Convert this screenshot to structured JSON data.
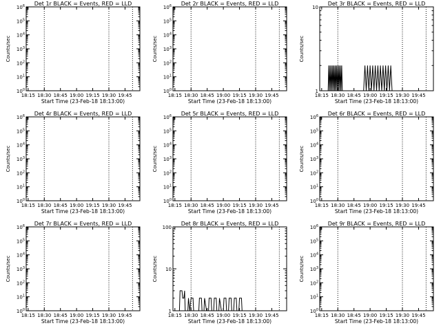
{
  "figure": {
    "background": "#ffffff",
    "axis_color": "#000000",
    "event_color": "#000000",
    "lld_color": "#ff0000"
  },
  "chart_data": [
    {
      "type": "line",
      "title": "Det 1r BLACK = Events, RED = LLD",
      "ylabel": "Counts/sec",
      "xlabel": "Start Time (23-Feb-18 18:13:00)",
      "xtick_labels": [
        "18:15",
        "18:30",
        "18:45",
        "19:00",
        "19:15",
        "19:30",
        "19:45"
      ],
      "yscale": "log",
      "ylim": [
        1,
        1000000
      ],
      "ytick_labels": [
        "10^0",
        "10^1",
        "10^2",
        "10^3",
        "10^4",
        "10^5",
        "10^6"
      ],
      "markers": [
        "18:30",
        "19:30",
        "19:52"
      ],
      "series": []
    },
    {
      "type": "line",
      "title": "Det 2r BLACK = Events, RED = LLD",
      "ylabel": "Counts/sec",
      "xlabel": "Start Time (23-Feb-18 18:13:00)",
      "xtick_labels": [
        "18:15",
        "18:30",
        "18:45",
        "19:00",
        "19:15",
        "19:30",
        "19:45"
      ],
      "yscale": "log",
      "ylim": [
        1,
        1000000
      ],
      "ytick_labels": [
        "10^0",
        "10^1",
        "10^2",
        "10^3",
        "10^4",
        "10^5",
        "10^6"
      ],
      "markers": [
        "18:30",
        "19:30",
        "19:52"
      ],
      "series": []
    },
    {
      "type": "line",
      "title": "Det 3r BLACK = Events, RED = LLD",
      "ylabel": "Counts/sec",
      "xlabel": "Start Time (23-Feb-18 18:13:00)",
      "xtick_labels": [
        "18:15",
        "18:30",
        "18:45",
        "19:00",
        "19:15",
        "19:30",
        "19:45"
      ],
      "yscale": "log",
      "ylim": [
        1,
        10
      ],
      "ytick_labels": [
        "1",
        "10"
      ],
      "markers": [
        "18:30",
        "19:30",
        "19:52"
      ],
      "series": [
        {
          "points": [
            [
              18.35,
              1
            ],
            [
              18.36,
              2
            ],
            [
              18.37,
              1
            ],
            [
              18.38,
              2
            ],
            [
              18.39,
              1
            ],
            [
              18.4,
              2
            ],
            [
              18.41,
              1
            ],
            [
              18.42,
              2
            ],
            [
              18.43,
              1
            ],
            [
              18.44,
              2
            ],
            [
              18.45,
              1
            ],
            [
              18.46,
              2
            ],
            [
              18.47,
              1
            ],
            [
              18.48,
              2
            ],
            [
              18.49,
              1
            ],
            [
              18.5,
              2
            ],
            [
              18.51,
              1
            ],
            [
              18.52,
              2
            ],
            [
              18.53,
              1
            ],
            [
              18.54,
              2
            ],
            [
              18.55,
              1
            ],
            [
              18.56,
              2
            ],
            [
              18.57,
              1
            ],
            [
              18.9,
              1
            ],
            [
              18.92,
              2
            ],
            [
              18.94,
              1
            ],
            [
              18.96,
              2
            ],
            [
              18.98,
              1
            ],
            [
              19.0,
              2
            ],
            [
              19.02,
              1
            ],
            [
              19.04,
              2
            ],
            [
              19.06,
              1
            ],
            [
              19.08,
              2
            ],
            [
              19.1,
              1
            ],
            [
              19.12,
              2
            ],
            [
              19.14,
              1
            ],
            [
              19.16,
              2
            ],
            [
              19.18,
              1
            ],
            [
              19.2,
              2
            ],
            [
              19.22,
              1
            ],
            [
              19.24,
              2
            ],
            [
              19.26,
              1
            ],
            [
              19.28,
              2
            ],
            [
              19.3,
              1
            ],
            [
              19.32,
              2
            ],
            [
              19.34,
              1
            ]
          ]
        }
      ]
    },
    {
      "type": "line",
      "title": "Det 4r BLACK = Events, RED = LLD",
      "ylabel": "Counts/sec",
      "xlabel": "Start Time (23-Feb-18 18:13:00)",
      "xtick_labels": [
        "18:15",
        "18:30",
        "18:45",
        "19:00",
        "19:15",
        "19:30",
        "19:45"
      ],
      "yscale": "log",
      "ylim": [
        1,
        1000000
      ],
      "ytick_labels": [
        "10^0",
        "10^1",
        "10^2",
        "10^3",
        "10^4",
        "10^5",
        "10^6"
      ],
      "markers": [
        "18:30",
        "19:30",
        "19:52"
      ],
      "series": []
    },
    {
      "type": "line",
      "title": "Det 5r BLACK = Events, RED = LLD",
      "ylabel": "Counts/sec",
      "xlabel": "Start Time (23-Feb-18 18:13:00)",
      "xtick_labels": [
        "18:15",
        "18:30",
        "18:45",
        "19:00",
        "19:15",
        "19:30",
        "19:45"
      ],
      "yscale": "log",
      "ylim": [
        1,
        1000000
      ],
      "ytick_labels": [
        "10^0",
        "10^1",
        "10^2",
        "10^3",
        "10^4",
        "10^5",
        "10^6"
      ],
      "markers": [
        "18:30",
        "19:30",
        "19:52"
      ],
      "series": []
    },
    {
      "type": "line",
      "title": "Det 6r BLACK = Events, RED = LLD",
      "ylabel": "Counts/sec",
      "xlabel": "Start Time (23-Feb-18 18:13:00)",
      "xtick_labels": [
        "18:15",
        "18:30",
        "18:45",
        "19:00",
        "19:15",
        "19:30",
        "19:45"
      ],
      "yscale": "log",
      "ylim": [
        1,
        1000000
      ],
      "ytick_labels": [
        "10^0",
        "10^1",
        "10^2",
        "10^3",
        "10^4",
        "10^5",
        "10^6"
      ],
      "markers": [
        "18:30",
        "19:30",
        "19:52"
      ],
      "series": []
    },
    {
      "type": "line",
      "title": "Det 7r BLACK = Events, RED = LLD",
      "ylabel": "Counts/sec",
      "xlabel": "Start Time (23-Feb-18 18:13:00)",
      "xtick_labels": [
        "18:15",
        "18:30",
        "18:45",
        "19:00",
        "19:15",
        "19:30",
        "19:45"
      ],
      "yscale": "log",
      "ylim": [
        1,
        1000000
      ],
      "ytick_labels": [
        "10^0",
        "10^1",
        "10^2",
        "10^3",
        "10^4",
        "10^5",
        "10^6"
      ],
      "markers": [
        "18:30",
        "19:30",
        "19:52"
      ],
      "series": []
    },
    {
      "type": "line",
      "title": "Det 8r BLACK = Events, RED = LLD",
      "ylabel": "Counts/sec",
      "xlabel": "Start Time (23-Feb-18 18:13:00)",
      "xtick_labels": [
        "18:15",
        "18:30",
        "18:45",
        "19:00",
        "19:15",
        "19:30",
        "19:45"
      ],
      "yscale": "log",
      "ylim": [
        1,
        100
      ],
      "ytick_labels": [
        "1",
        "10",
        "100"
      ],
      "markers": [
        "18:30",
        "19:30",
        "19:52"
      ],
      "series": [
        {
          "points": [
            [
              18.32,
              1
            ],
            [
              18.33,
              3
            ],
            [
              18.36,
              3
            ],
            [
              18.37,
              2
            ],
            [
              18.39,
              2
            ],
            [
              18.4,
              3
            ],
            [
              18.41,
              1
            ],
            [
              18.45,
              1
            ],
            [
              18.46,
              2
            ],
            [
              18.48,
              1
            ],
            [
              18.5,
              2
            ],
            [
              18.53,
              2
            ],
            [
              18.54,
              1
            ],
            [
              18.62,
              1
            ],
            [
              18.63,
              2
            ],
            [
              18.66,
              2
            ],
            [
              18.67,
              1
            ],
            [
              18.7,
              1
            ],
            [
              18.71,
              2
            ],
            [
              18.74,
              1
            ],
            [
              18.77,
              1
            ],
            [
              18.78,
              2
            ],
            [
              18.81,
              2
            ],
            [
              18.82,
              1
            ],
            [
              18.85,
              1
            ],
            [
              18.86,
              2
            ],
            [
              18.89,
              2
            ],
            [
              18.9,
              1
            ],
            [
              18.93,
              1
            ],
            [
              18.94,
              2
            ],
            [
              18.97,
              1
            ],
            [
              19.0,
              1
            ],
            [
              19.01,
              2
            ],
            [
              19.04,
              2
            ],
            [
              19.05,
              1
            ],
            [
              19.08,
              1
            ],
            [
              19.09,
              2
            ],
            [
              19.12,
              2
            ],
            [
              19.13,
              1
            ],
            [
              19.16,
              1
            ],
            [
              19.17,
              2
            ],
            [
              19.2,
              2
            ],
            [
              19.21,
              1
            ],
            [
              19.24,
              1
            ],
            [
              19.25,
              2
            ],
            [
              19.28,
              2
            ],
            [
              19.29,
              1
            ]
          ]
        }
      ]
    },
    {
      "type": "line",
      "title": "Det 9r BLACK = Events, RED = LLD",
      "ylabel": "Counts/sec",
      "xlabel": "Start Time (23-Feb-18 18:13:00)",
      "xtick_labels": [
        "18:15",
        "18:30",
        "18:45",
        "19:00",
        "19:15",
        "19:30",
        "19:45"
      ],
      "yscale": "log",
      "ylim": [
        1,
        1000000
      ],
      "ytick_labels": [
        "10^0",
        "10^1",
        "10^2",
        "10^3",
        "10^4",
        "10^5",
        "10^6"
      ],
      "markers": [
        "18:30",
        "19:30",
        "19:52"
      ],
      "series": []
    }
  ]
}
